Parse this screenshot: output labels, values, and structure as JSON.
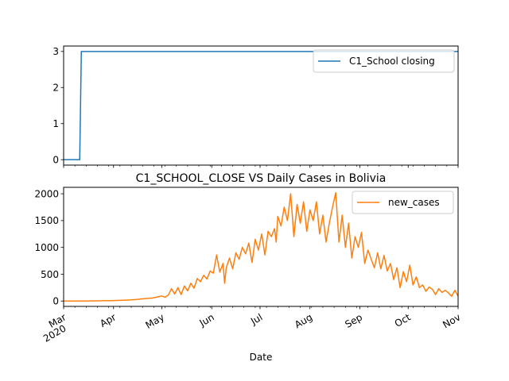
{
  "chart_data": [
    {
      "type": "line",
      "title": "",
      "xlabel": "",
      "ylabel": "",
      "x_range": [
        "2020-03-01",
        "2020-11-01"
      ],
      "ylim": [
        -0.15,
        3.15
      ],
      "yticks": [
        0,
        1,
        2,
        3
      ],
      "x": [
        "2020-03-01",
        "2020-03-11",
        "2020-03-12",
        "2020-11-01"
      ],
      "series": [
        {
          "name": "C1_School closing",
          "color": "#1f77b4",
          "values": [
            0,
            0,
            3,
            3
          ]
        }
      ],
      "legend": "upper-right",
      "grid": false
    },
    {
      "type": "line",
      "title": "C1_SCHOOL_CLOSE VS Daily Cases in Bolivia",
      "xlabel": "Date",
      "ylabel": "",
      "x_range": [
        "2020-03-01",
        "2020-11-01"
      ],
      "ylim": [
        -100,
        2120
      ],
      "yticks": [
        0,
        500,
        1000,
        1500,
        2000
      ],
      "x_ticks": [
        {
          "date": "2020-03-01",
          "label": "Mar",
          "sublabel": "2020"
        },
        {
          "date": "2020-04-01",
          "label": "Apr"
        },
        {
          "date": "2020-05-01",
          "label": "May"
        },
        {
          "date": "2020-06-01",
          "label": "Jun"
        },
        {
          "date": "2020-07-01",
          "label": "Jul"
        },
        {
          "date": "2020-08-01",
          "label": "Aug"
        },
        {
          "date": "2020-09-01",
          "label": "Sep"
        },
        {
          "date": "2020-10-01",
          "label": "Oct"
        },
        {
          "date": "2020-11-01",
          "label": "Nov"
        }
      ],
      "x": [
        "2020-03-01",
        "2020-03-10",
        "2020-03-20",
        "2020-03-25",
        "2020-03-31",
        "2020-04-05",
        "2020-04-10",
        "2020-04-15",
        "2020-04-20",
        "2020-04-25",
        "2020-04-29",
        "2020-05-01",
        "2020-05-03",
        "2020-05-05",
        "2020-05-07",
        "2020-05-09",
        "2020-05-11",
        "2020-05-13",
        "2020-05-15",
        "2020-05-17",
        "2020-05-19",
        "2020-05-21",
        "2020-05-23",
        "2020-05-25",
        "2020-05-27",
        "2020-05-29",
        "2020-05-31",
        "2020-06-02",
        "2020-06-04",
        "2020-06-06",
        "2020-06-08",
        "2020-06-09",
        "2020-06-10",
        "2020-06-12",
        "2020-06-14",
        "2020-06-16",
        "2020-06-18",
        "2020-06-20",
        "2020-06-22",
        "2020-06-24",
        "2020-06-26",
        "2020-06-28",
        "2020-06-30",
        "2020-07-02",
        "2020-07-04",
        "2020-07-06",
        "2020-07-08",
        "2020-07-10",
        "2020-07-11",
        "2020-07-12",
        "2020-07-14",
        "2020-07-16",
        "2020-07-18",
        "2020-07-20",
        "2020-07-22",
        "2020-07-24",
        "2020-07-26",
        "2020-07-28",
        "2020-07-30",
        "2020-08-01",
        "2020-08-03",
        "2020-08-05",
        "2020-08-07",
        "2020-08-09",
        "2020-08-11",
        "2020-08-13",
        "2020-08-15",
        "2020-08-17",
        "2020-08-19",
        "2020-08-21",
        "2020-08-23",
        "2020-08-25",
        "2020-08-27",
        "2020-08-29",
        "2020-08-31",
        "2020-09-02",
        "2020-09-04",
        "2020-09-06",
        "2020-09-08",
        "2020-09-10",
        "2020-09-12",
        "2020-09-14",
        "2020-09-16",
        "2020-09-18",
        "2020-09-20",
        "2020-09-22",
        "2020-09-24",
        "2020-09-26",
        "2020-09-28",
        "2020-09-30",
        "2020-10-02",
        "2020-10-04",
        "2020-10-06",
        "2020-10-08",
        "2020-10-10",
        "2020-10-12",
        "2020-10-14",
        "2020-10-16",
        "2020-10-18",
        "2020-10-20",
        "2020-10-22",
        "2020-10-24",
        "2020-10-26",
        "2020-10-28",
        "2020-10-30",
        "2020-11-01"
      ],
      "series": [
        {
          "name": "new_cases",
          "color": "#ff7f0e",
          "values": [
            0,
            0,
            2,
            5,
            8,
            12,
            18,
            28,
            45,
            55,
            80,
            95,
            70,
            110,
            230,
            130,
            250,
            120,
            280,
            190,
            330,
            240,
            420,
            360,
            480,
            410,
            560,
            520,
            860,
            540,
            700,
            330,
            620,
            800,
            600,
            900,
            780,
            1000,
            880,
            1080,
            720,
            1150,
            950,
            1250,
            860,
            1300,
            1200,
            1350,
            1100,
            1580,
            1400,
            1750,
            1500,
            2000,
            1200,
            1800,
            1450,
            1850,
            1300,
            1700,
            1500,
            1850,
            1250,
            1600,
            1100,
            1450,
            1750,
            2020,
            1100,
            1600,
            1000,
            1450,
            800,
            1200,
            1000,
            1280,
            700,
            950,
            780,
            620,
            900,
            600,
            850,
            560,
            700,
            400,
            620,
            250,
            550,
            360,
            670,
            300,
            450,
            250,
            300,
            180,
            260,
            220,
            120,
            230,
            160,
            200,
            150,
            90,
            200,
            90
          ]
        }
      ],
      "legend": "upper-right",
      "grid": false
    }
  ]
}
